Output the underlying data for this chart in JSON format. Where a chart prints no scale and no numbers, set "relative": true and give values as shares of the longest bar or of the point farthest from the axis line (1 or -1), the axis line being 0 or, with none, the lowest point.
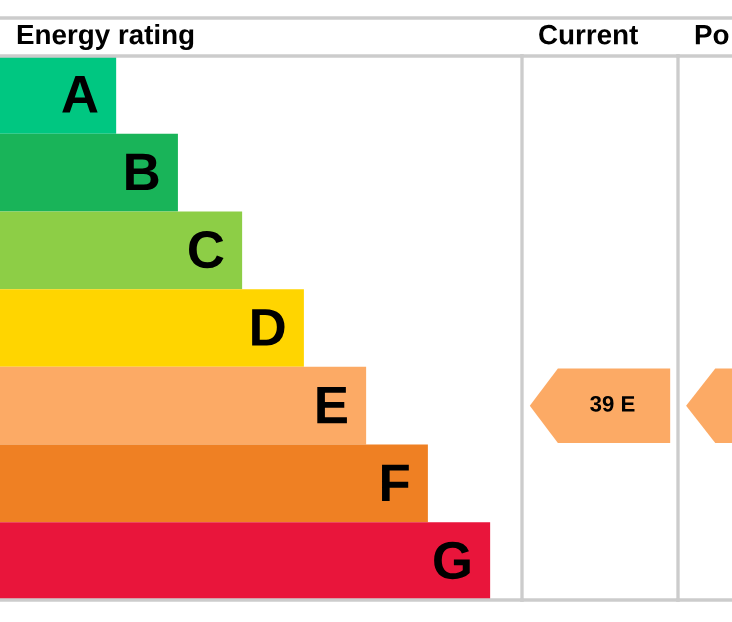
{
  "chart_data": {
    "type": "bar",
    "orientation": "horizontal",
    "relative": true,
    "title": "Energy rating",
    "categories": [
      "A",
      "B",
      "C",
      "D",
      "E",
      "F",
      "G"
    ],
    "values": [
      0.237,
      0.363,
      0.494,
      0.62,
      0.747,
      0.873,
      1
    ],
    "colors": [
      "#00c781",
      "#19b459",
      "#8dce46",
      "#ffd500",
      "#fcaa65",
      "#ef8023",
      "#e9153b"
    ],
    "annotations": [
      "Current",
      "Po",
      "39 E"
    ]
  }
}
